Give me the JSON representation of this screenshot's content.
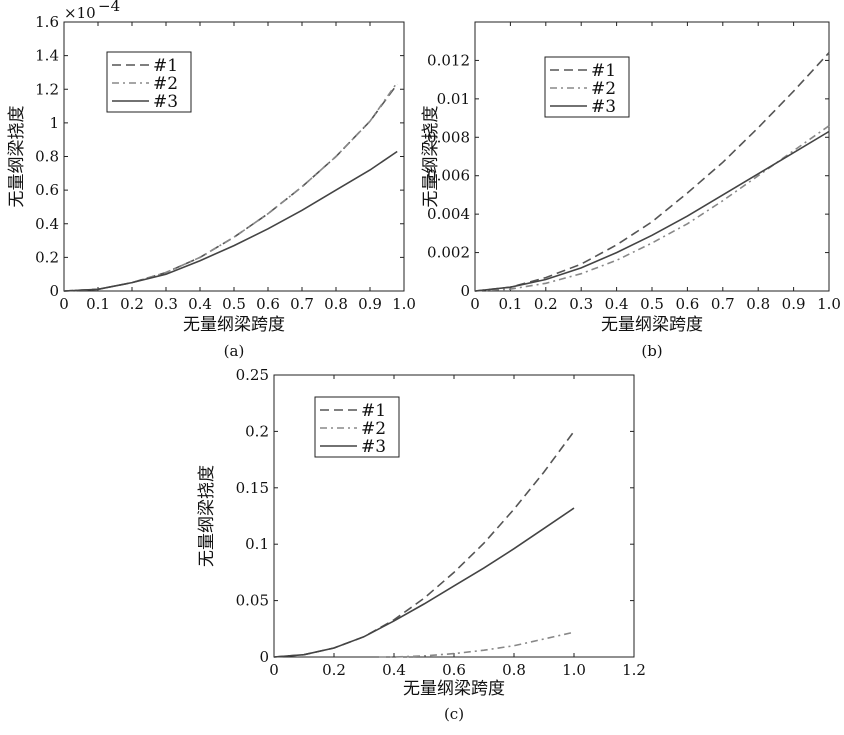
{
  "chart_data": [
    {
      "type": "line",
      "caption": "(a)",
      "xlabel": "无量纲梁跨度",
      "ylabel": "无量纲梁挠度",
      "y_multiplier": "×10",
      "y_multiplier_exp": "−4",
      "xlim": [
        0,
        1.0
      ],
      "ylim": [
        0,
        1.6
      ],
      "x_ticks": [
        "0",
        "0.1",
        "0.2",
        "0.3",
        "0.4",
        "0.5",
        "0.6",
        "0.7",
        "0.8",
        "0.9",
        "1.0"
      ],
      "y_ticks": [
        "0",
        "0.2",
        "0.4",
        "0.6",
        "0.8",
        "1",
        "1.2",
        "1.4",
        "1.6"
      ],
      "legend_position": "top-left",
      "series": [
        {
          "name": "#1",
          "style": "dashed",
          "x": [
            0,
            0.1,
            0.2,
            0.3,
            0.4,
            0.5,
            0.6,
            0.7,
            0.8,
            0.9,
            0.98
          ],
          "y": [
            0,
            0.01,
            0.05,
            0.11,
            0.2,
            0.32,
            0.46,
            0.62,
            0.8,
            1.01,
            1.23
          ]
        },
        {
          "name": "#2",
          "style": "dashdot",
          "x": [
            0,
            0.1,
            0.2,
            0.3,
            0.4,
            0.5,
            0.6,
            0.7,
            0.8,
            0.9,
            0.98
          ],
          "y": [
            0,
            0.01,
            0.05,
            0.11,
            0.2,
            0.32,
            0.46,
            0.62,
            0.8,
            1.01,
            1.24
          ]
        },
        {
          "name": "#3",
          "style": "solid",
          "x": [
            0,
            0.1,
            0.2,
            0.3,
            0.4,
            0.5,
            0.6,
            0.7,
            0.8,
            0.9,
            0.98
          ],
          "y": [
            0,
            0.01,
            0.05,
            0.1,
            0.18,
            0.27,
            0.37,
            0.48,
            0.6,
            0.72,
            0.83
          ]
        }
      ]
    },
    {
      "type": "line",
      "caption": "(b)",
      "xlabel": "无量纲梁跨度",
      "ylabel": "无量纲梁挠度",
      "xlim": [
        0,
        1.0
      ],
      "ylim": [
        0,
        0.014
      ],
      "x_ticks": [
        "0",
        "0.1",
        "0.2",
        "0.3",
        "0.4",
        "0.5",
        "0.6",
        "0.7",
        "0.8",
        "0.9",
        "1.0"
      ],
      "y_ticks": [
        "0",
        "0.002",
        "0.004",
        "0.006",
        "0.008",
        "0.01",
        "0.012"
      ],
      "legend_position": "top-left",
      "series": [
        {
          "name": "#1",
          "style": "dashed",
          "x": [
            0,
            0.1,
            0.2,
            0.3,
            0.4,
            0.5,
            0.6,
            0.7,
            0.8,
            0.9,
            1.0
          ],
          "y": [
            0,
            0.0002,
            0.0007,
            0.0014,
            0.0024,
            0.0036,
            0.0051,
            0.0067,
            0.0085,
            0.0104,
            0.0124
          ]
        },
        {
          "name": "#2",
          "style": "dashdot",
          "x": [
            0,
            0.1,
            0.2,
            0.3,
            0.4,
            0.5,
            0.6,
            0.7,
            0.8,
            0.9,
            1.0
          ],
          "y": [
            0,
            0.0001,
            0.0004,
            0.0009,
            0.0016,
            0.0025,
            0.0035,
            0.0047,
            0.006,
            0.0073,
            0.0086
          ]
        },
        {
          "name": "#3",
          "style": "solid",
          "x": [
            0,
            0.1,
            0.2,
            0.3,
            0.4,
            0.5,
            0.6,
            0.7,
            0.8,
            0.9,
            1.0
          ],
          "y": [
            0,
            0.0002,
            0.0006,
            0.0012,
            0.002,
            0.0029,
            0.0039,
            0.005,
            0.0061,
            0.0072,
            0.0083
          ]
        }
      ]
    },
    {
      "type": "line",
      "caption": "(c)",
      "xlabel": "无量纲梁跨度",
      "ylabel": "无量纲梁挠度",
      "xlim": [
        0,
        1.2
      ],
      "ylim": [
        0,
        0.25
      ],
      "x_ticks": [
        "0",
        "0.2",
        "0.4",
        "0.6",
        "0.8",
        "1.0",
        "1.2"
      ],
      "y_ticks": [
        "0",
        "0.05",
        "0.1",
        "0.15",
        "0.2",
        "0.25"
      ],
      "legend_position": "top-left",
      "series": [
        {
          "name": "#1",
          "style": "dashed",
          "x": [
            0,
            0.1,
            0.2,
            0.3,
            0.4,
            0.5,
            0.6,
            0.7,
            0.8,
            0.9,
            1.0
          ],
          "y": [
            0,
            0.002,
            0.008,
            0.018,
            0.033,
            0.052,
            0.075,
            0.101,
            0.131,
            0.164,
            0.2
          ]
        },
        {
          "name": "#2",
          "style": "dashdot",
          "x": [
            0.35,
            0.4,
            0.5,
            0.6,
            0.7,
            0.8,
            0.9,
            1.0
          ],
          "y": [
            0,
            0,
            0.001,
            0.003,
            0.006,
            0.01,
            0.016,
            0.022
          ]
        },
        {
          "name": "#3",
          "style": "solid",
          "x": [
            0,
            0.1,
            0.2,
            0.3,
            0.4,
            0.5,
            0.6,
            0.7,
            0.8,
            0.9,
            1.0
          ],
          "y": [
            0,
            0.002,
            0.008,
            0.018,
            0.032,
            0.047,
            0.063,
            0.079,
            0.096,
            0.114,
            0.132
          ]
        }
      ]
    }
  ]
}
